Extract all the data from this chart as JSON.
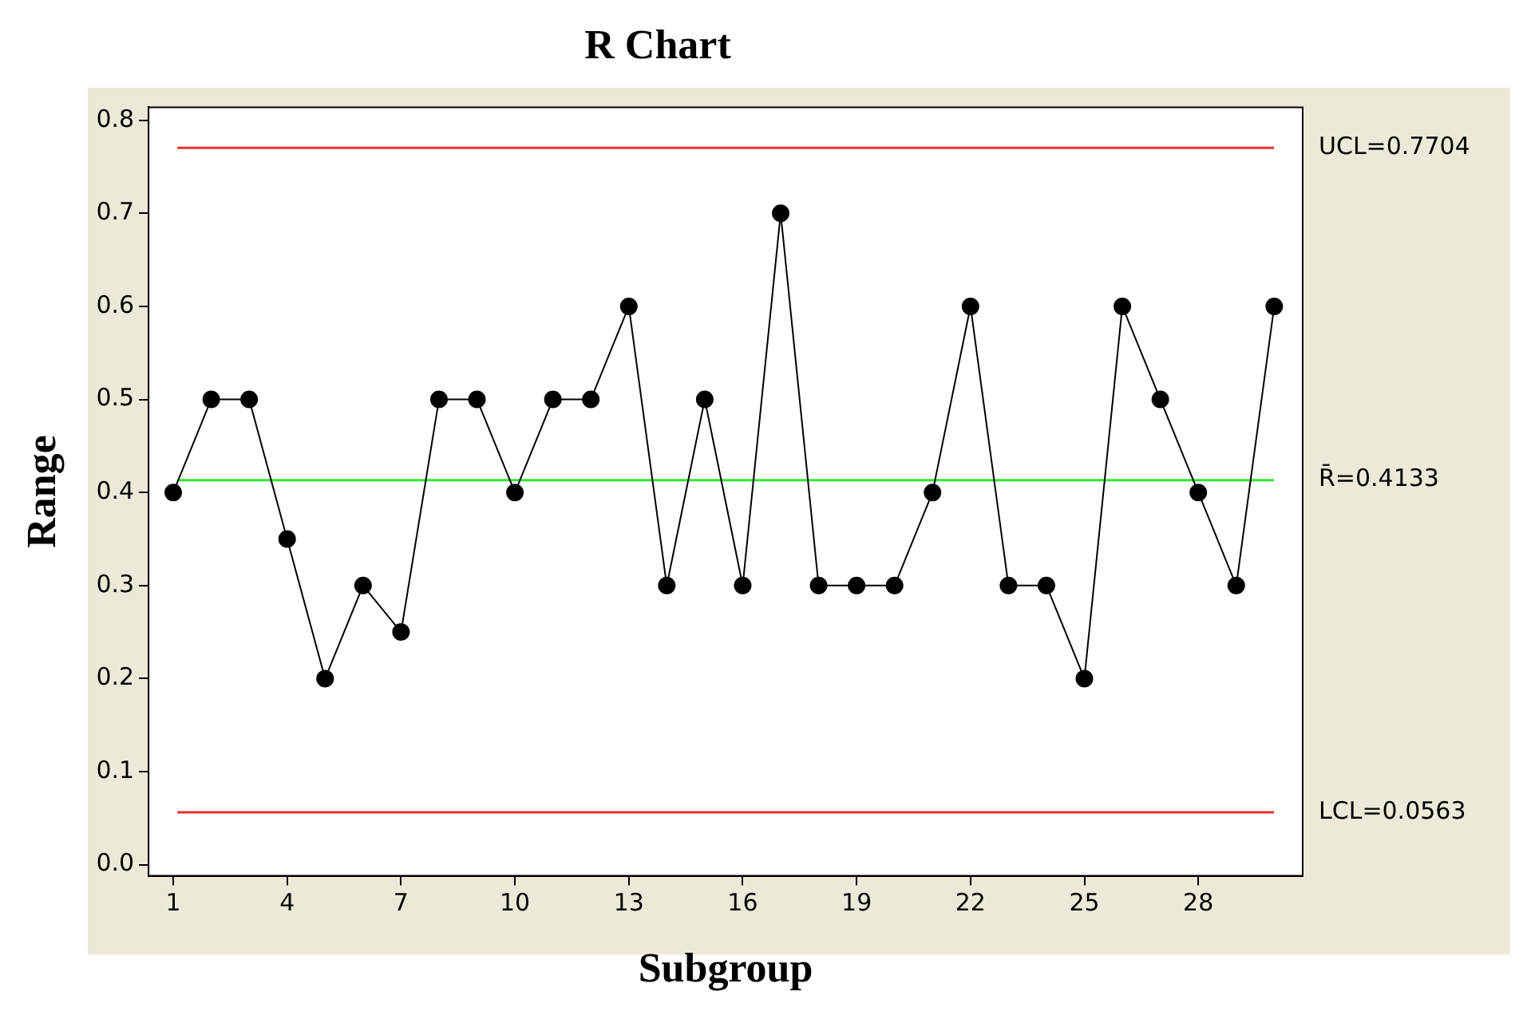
{
  "chart_data": {
    "type": "line",
    "title": "R Chart",
    "xlabel": "Subgroup",
    "ylabel": "Range",
    "x": [
      1,
      2,
      3,
      4,
      5,
      6,
      7,
      8,
      9,
      10,
      11,
      12,
      13,
      14,
      15,
      16,
      17,
      18,
      19,
      20,
      21,
      22,
      23,
      24,
      25,
      26,
      27,
      28,
      29,
      30
    ],
    "series": [
      {
        "color": "#000000",
        "values": [
          0.4,
          0.5,
          0.5,
          0.35,
          0.2,
          0.3,
          0.25,
          0.5,
          0.5,
          0.4,
          0.5,
          0.5,
          0.6,
          0.3,
          0.5,
          0.3,
          0.7,
          0.3,
          0.3,
          0.3,
          0.4,
          0.6,
          0.3,
          0.3,
          0.2,
          0.6,
          0.5,
          0.4,
          0.3,
          0.6
        ]
      }
    ],
    "xlim": [
      0.35,
      30.75
    ],
    "xticks": [
      1,
      4,
      7,
      10,
      13,
      16,
      19,
      22,
      25,
      28
    ],
    "ylim": [
      -0.012,
      0.814
    ],
    "yticks": [
      {
        "value": 0,
        "label": "0.0"
      },
      0.1,
      0.2,
      0.3,
      0.4,
      0.5,
      0.6,
      0.7,
      0.8
    ],
    "ref_lines": [
      {
        "axis": "y",
        "value": 0.7704,
        "label": "UCL=0.7704",
        "color": "#e53232"
      },
      {
        "axis": "y",
        "value": 0.4133,
        "label": "R̄=0.4133",
        "color": "#33e833"
      },
      {
        "axis": "y",
        "value": 0.0563,
        "label": "LCL=0.0563",
        "color": "#e53232"
      }
    ],
    "marker": "circle",
    "line_style": "solid",
    "grid": false,
    "legend": false
  }
}
